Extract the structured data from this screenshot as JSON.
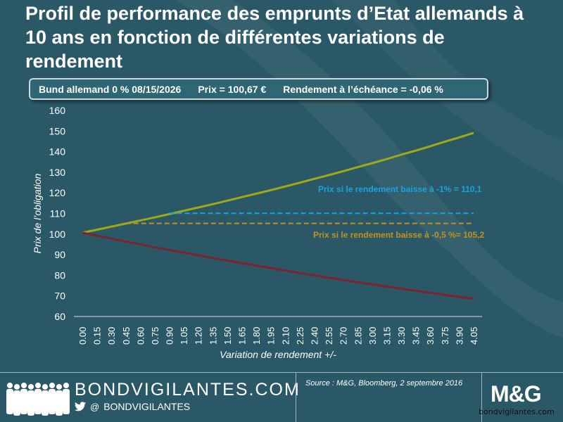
{
  "title": "Profil de performance des emprunts d’Etat allemands à 10 ans en fonction de différentes variations de rendement",
  "info": {
    "bond": "Bund allemand 0 % 08/15/2026",
    "price": "Prix = 100,67 €",
    "yield": "Rendement à l’échéance = -0,06 %"
  },
  "colors": {
    "background": "#2b5866",
    "green": "#9aab17",
    "red": "#7a2333",
    "blue_dash": "#1aa3df",
    "orange_dash": "#c49220"
  },
  "chart_data": {
    "type": "line",
    "xlabel": "Variation de rendement +/-",
    "ylabel": "Prix de l’obligation",
    "ylim": [
      60,
      160
    ],
    "yticks": [
      "60",
      "70",
      "80",
      "90",
      "100",
      "110",
      "120",
      "130",
      "140",
      "150",
      "160"
    ],
    "x": [
      "0.00",
      "0.15",
      "0.30",
      "0.45",
      "0.60",
      "0.75",
      "0.90",
      "1.05",
      "1.20",
      "1.35",
      "1.50",
      "1.65",
      "1.80",
      "1.95",
      "2.10",
      "2.25",
      "2.40",
      "2.55",
      "2.70",
      "2.85",
      "3.00",
      "3.15",
      "3.30",
      "3.45",
      "3.60",
      "3.75",
      "3.90",
      "4.05"
    ],
    "series": [
      {
        "values": [
          100.67,
          102.1,
          103.6,
          105.1,
          106.6,
          108.1,
          109.7,
          111.3,
          112.9,
          114.5,
          116.2,
          117.9,
          119.6,
          121.3,
          123.1,
          124.9,
          126.8,
          128.6,
          130.5,
          132.5,
          134.4,
          136.4,
          138.5,
          140.5,
          142.6,
          144.8,
          146.9,
          149.1
        ]
      },
      {
        "values": [
          100.67,
          99.2,
          97.8,
          96.4,
          95.0,
          93.6,
          92.3,
          91.0,
          89.7,
          88.4,
          87.1,
          85.9,
          84.7,
          83.5,
          82.3,
          81.1,
          80.0,
          78.8,
          77.7,
          76.6,
          75.6,
          74.5,
          73.5,
          72.5,
          71.5,
          70.5,
          69.5,
          68.6
        ]
      },
      {
        "values": [
          110.1,
          110.1,
          110.1,
          110.1,
          110.1,
          110.1,
          110.1,
          110.1,
          110.1,
          110.1,
          110.1,
          110.1,
          110.1,
          110.1,
          110.1,
          110.1,
          110.1,
          110.1,
          110.1,
          110.1,
          110.1,
          110.1,
          110.1,
          110.1,
          110.1,
          110.1,
          110.1,
          110.1
        ]
      },
      {
        "values": [
          105.2,
          105.2,
          105.2,
          105.2,
          105.2,
          105.2,
          105.2,
          105.2,
          105.2,
          105.2,
          105.2,
          105.2,
          105.2,
          105.2,
          105.2,
          105.2,
          105.2,
          105.2,
          105.2,
          105.2,
          105.2,
          105.2,
          105.2,
          105.2,
          105.2,
          105.2,
          105.2,
          105.2
        ]
      }
    ],
    "annotations": [
      "Prix si le rendement baisse à  -1% = 110,1",
      "Prix si le rendement baisse à -0,5 %= 105,2"
    ],
    "grid": false,
    "legend": "none"
  },
  "footer": {
    "brand": "BONDVIGILANTES.COM",
    "handle": "BONDVIGILANTES",
    "at": "@",
    "source": "Source : M&G, Bloomberg, 2 septembre 2016",
    "logo": "M&G",
    "watermark": "bondvigilantes.com"
  }
}
